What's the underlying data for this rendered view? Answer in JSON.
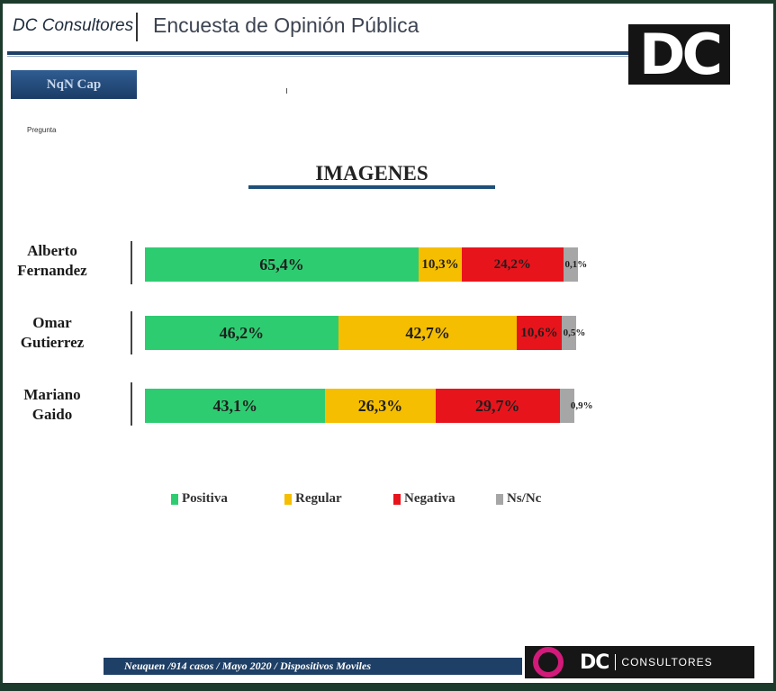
{
  "header": {
    "brand": "DC Consultores",
    "title": "Encuesta de Opinión Pública",
    "logo_text": "DC"
  },
  "tag": "NqN Cap",
  "question_label": "Pregunta",
  "colors": {
    "positiva": "#2ecc71",
    "regular": "#f5be00",
    "negativa": "#e8141c",
    "nsnc": "#a6a6a6"
  },
  "chart_data": {
    "type": "bar",
    "orientation": "horizontal",
    "stacked": true,
    "title": "IMAGENES",
    "categories": [
      "Alberto\nFernandez",
      "Omar\nGutierrez",
      "Mariano\nGaido"
    ],
    "series": [
      {
        "name": "Positiva",
        "key": "positiva",
        "values": [
          65.4,
          46.2,
          43.1
        ],
        "labels": [
          "65,4%",
          "46,2%",
          "43,1%"
        ]
      },
      {
        "name": "Regular",
        "key": "regular",
        "values": [
          10.3,
          42.7,
          26.3
        ],
        "labels": [
          "10,3%",
          "42,7%",
          "26,3%"
        ]
      },
      {
        "name": "Negativa",
        "key": "negativa",
        "values": [
          24.2,
          10.6,
          29.7
        ],
        "labels": [
          "24,2%",
          "10,6%",
          "29,7%"
        ]
      },
      {
        "name": "Ns/Nc",
        "key": "nsnc",
        "values": [
          0.1,
          0.5,
          0.9
        ],
        "labels": [
          "0,1%",
          "0,5%",
          "0,9%"
        ]
      }
    ],
    "legend": [
      "Positiva",
      "Regular",
      "Negativa",
      "Ns/Nc"
    ],
    "legend_position": "bottom"
  },
  "footer": {
    "text": "Neuquen /914 casos / Mayo 2020   / Dispositivos Moviles",
    "logo_dc": "DC",
    "logo_consultores": "CONSULTORES"
  }
}
